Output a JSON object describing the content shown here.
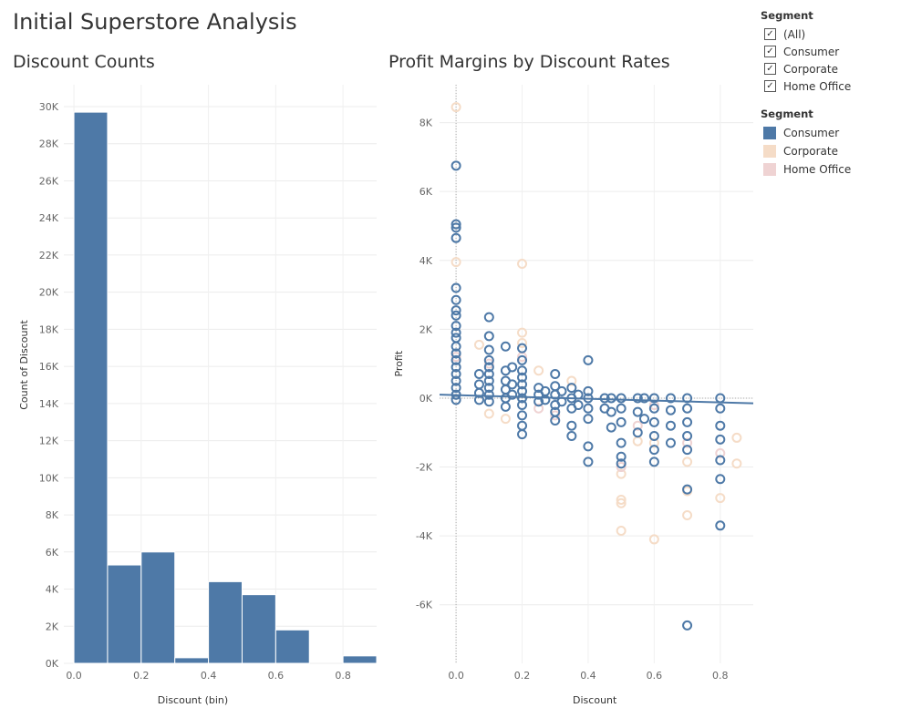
{
  "dashboard": {
    "title": "Initial Superstore Analysis"
  },
  "filter": {
    "title": "Segment",
    "items": [
      {
        "label": "(All)",
        "checked": true
      },
      {
        "label": "Consumer",
        "checked": true
      },
      {
        "label": "Corporate",
        "checked": true
      },
      {
        "label": "Home Office",
        "checked": true
      }
    ]
  },
  "color_legend": {
    "title": "Segment",
    "items": [
      {
        "label": "Consumer",
        "color": "#4e79a7"
      },
      {
        "label": "Corporate",
        "color": "#f5dcc7"
      },
      {
        "label": "Home Office",
        "color": "#efd3d3"
      }
    ]
  },
  "chart_data": [
    {
      "type": "bar",
      "title": "Discount Counts",
      "xlabel": "Discount (bin)",
      "ylabel": "Count of Discount",
      "bin_width": 0.1,
      "bins": [
        0.0,
        0.1,
        0.2,
        0.3,
        0.4,
        0.5,
        0.6,
        0.7,
        0.8
      ],
      "values": [
        29700,
        5300,
        6000,
        300,
        4400,
        3700,
        1800,
        0,
        400
      ],
      "xticks": [
        "0.0",
        "0.2",
        "0.4",
        "0.6",
        "0.8"
      ],
      "xtick_values": [
        0.0,
        0.2,
        0.4,
        0.6,
        0.8
      ],
      "yticks": [
        "0K",
        "2K",
        "4K",
        "6K",
        "8K",
        "10K",
        "12K",
        "14K",
        "16K",
        "18K",
        "20K",
        "22K",
        "24K",
        "26K",
        "28K",
        "30K"
      ],
      "ylim": [
        0,
        30000
      ],
      "color": "#4e79a7",
      "grid": true
    },
    {
      "type": "scatter",
      "title": "Profit Margins by Discount Rates",
      "xlabel": "Discount",
      "ylabel": "Profit",
      "xlim": [
        -0.05,
        0.9
      ],
      "ylim": [
        -7700,
        9100
      ],
      "xticks": [
        "0.0",
        "0.2",
        "0.4",
        "0.6",
        "0.8"
      ],
      "xtick_values": [
        0.0,
        0.2,
        0.4,
        0.6,
        0.8
      ],
      "yticks": [
        "-6K",
        "-4K",
        "-2K",
        "0K",
        "2K",
        "4K",
        "6K",
        "8K"
      ],
      "ytick_values": [
        -6000,
        -4000,
        -2000,
        0,
        2000,
        4000,
        6000,
        8000
      ],
      "trend_line": {
        "x": [
          -0.05,
          0.9
        ],
        "y": [
          100,
          -150
        ]
      },
      "grid": true,
      "series": [
        {
          "name": "Consumer",
          "color": "#4e79a7",
          "points": [
            [
              0.0,
              6750
            ],
            [
              0.0,
              5050
            ],
            [
              0.0,
              4950
            ],
            [
              0.0,
              4650
            ],
            [
              0.0,
              3200
            ],
            [
              0.0,
              2850
            ],
            [
              0.0,
              2550
            ],
            [
              0.0,
              2400
            ],
            [
              0.0,
              2100
            ],
            [
              0.0,
              1900
            ],
            [
              0.0,
              1750
            ],
            [
              0.0,
              1500
            ],
            [
              0.0,
              1300
            ],
            [
              0.0,
              1100
            ],
            [
              0.0,
              900
            ],
            [
              0.0,
              700
            ],
            [
              0.0,
              500
            ],
            [
              0.0,
              300
            ],
            [
              0.0,
              100
            ],
            [
              0.0,
              -50
            ],
            [
              0.07,
              700
            ],
            [
              0.07,
              400
            ],
            [
              0.07,
              150
            ],
            [
              0.07,
              -50
            ],
            [
              0.1,
              2350
            ],
            [
              0.1,
              1800
            ],
            [
              0.1,
              1400
            ],
            [
              0.1,
              1100
            ],
            [
              0.1,
              900
            ],
            [
              0.1,
              700
            ],
            [
              0.1,
              500
            ],
            [
              0.1,
              300
            ],
            [
              0.1,
              100
            ],
            [
              0.1,
              -100
            ],
            [
              0.15,
              1500
            ],
            [
              0.15,
              800
            ],
            [
              0.15,
              500
            ],
            [
              0.15,
              250
            ],
            [
              0.15,
              0
            ],
            [
              0.15,
              -250
            ],
            [
              0.17,
              900
            ],
            [
              0.17,
              400
            ],
            [
              0.17,
              100
            ],
            [
              0.2,
              1450
            ],
            [
              0.2,
              1100
            ],
            [
              0.2,
              800
            ],
            [
              0.2,
              600
            ],
            [
              0.2,
              400
            ],
            [
              0.2,
              200
            ],
            [
              0.2,
              0
            ],
            [
              0.2,
              -200
            ],
            [
              0.2,
              -500
            ],
            [
              0.2,
              -800
            ],
            [
              0.2,
              -1050
            ],
            [
              0.25,
              300
            ],
            [
              0.25,
              100
            ],
            [
              0.25,
              -100
            ],
            [
              0.27,
              200
            ],
            [
              0.27,
              -50
            ],
            [
              0.3,
              700
            ],
            [
              0.3,
              350
            ],
            [
              0.3,
              100
            ],
            [
              0.3,
              -200
            ],
            [
              0.3,
              -400
            ],
            [
              0.3,
              -650
            ],
            [
              0.32,
              200
            ],
            [
              0.32,
              -100
            ],
            [
              0.35,
              300
            ],
            [
              0.35,
              0
            ],
            [
              0.35,
              -300
            ],
            [
              0.35,
              -800
            ],
            [
              0.35,
              -1100
            ],
            [
              0.37,
              100
            ],
            [
              0.37,
              -200
            ],
            [
              0.4,
              1100
            ],
            [
              0.4,
              200
            ],
            [
              0.4,
              0
            ],
            [
              0.4,
              -300
            ],
            [
              0.4,
              -600
            ],
            [
              0.4,
              -1400
            ],
            [
              0.4,
              -1850
            ],
            [
              0.45,
              0
            ],
            [
              0.45,
              -300
            ],
            [
              0.47,
              0
            ],
            [
              0.47,
              -400
            ],
            [
              0.47,
              -850
            ],
            [
              0.5,
              0
            ],
            [
              0.5,
              -300
            ],
            [
              0.5,
              -700
            ],
            [
              0.5,
              -1300
            ],
            [
              0.5,
              -1700
            ],
            [
              0.5,
              -1900
            ],
            [
              0.55,
              0
            ],
            [
              0.55,
              -400
            ],
            [
              0.55,
              -1000
            ],
            [
              0.57,
              0
            ],
            [
              0.57,
              -600
            ],
            [
              0.6,
              0
            ],
            [
              0.6,
              -300
            ],
            [
              0.6,
              -700
            ],
            [
              0.6,
              -1100
            ],
            [
              0.6,
              -1500
            ],
            [
              0.6,
              -1850
            ],
            [
              0.65,
              0
            ],
            [
              0.65,
              -350
            ],
            [
              0.65,
              -800
            ],
            [
              0.65,
              -1300
            ],
            [
              0.7,
              0
            ],
            [
              0.7,
              -300
            ],
            [
              0.7,
              -700
            ],
            [
              0.7,
              -1100
            ],
            [
              0.7,
              -1500
            ],
            [
              0.7,
              -2650
            ],
            [
              0.7,
              -6600
            ],
            [
              0.8,
              0
            ],
            [
              0.8,
              -300
            ],
            [
              0.8,
              -800
            ],
            [
              0.8,
              -1200
            ],
            [
              0.8,
              -1800
            ],
            [
              0.8,
              -2350
            ],
            [
              0.8,
              -3700
            ]
          ]
        },
        {
          "name": "Corporate",
          "color": "#f5dcc7",
          "points": [
            [
              0.0,
              8450
            ],
            [
              0.0,
              3950
            ],
            [
              0.07,
              1550
            ],
            [
              0.1,
              -450
            ],
            [
              0.15,
              -600
            ],
            [
              0.2,
              3900
            ],
            [
              0.2,
              1900
            ],
            [
              0.2,
              1600
            ],
            [
              0.25,
              800
            ],
            [
              0.35,
              500
            ],
            [
              0.5,
              -2950
            ],
            [
              0.5,
              -3050
            ],
            [
              0.5,
              -3850
            ],
            [
              0.5,
              -2200
            ],
            [
              0.55,
              -1250
            ],
            [
              0.6,
              -4100
            ],
            [
              0.6,
              -1300
            ],
            [
              0.7,
              -3400
            ],
            [
              0.7,
              -2700
            ],
            [
              0.7,
              -1850
            ],
            [
              0.8,
              -2900
            ],
            [
              0.85,
              -1150
            ],
            [
              0.85,
              -1900
            ]
          ]
        },
        {
          "name": "Home Office",
          "color": "#efd3d3",
          "points": [
            [
              0.0,
              1200
            ],
            [
              0.1,
              1000
            ],
            [
              0.2,
              1200
            ],
            [
              0.25,
              -300
            ],
            [
              0.3,
              -500
            ],
            [
              0.5,
              -2000
            ],
            [
              0.55,
              -800
            ],
            [
              0.6,
              -200
            ],
            [
              0.7,
              -1300
            ],
            [
              0.8,
              -1600
            ]
          ]
        }
      ]
    }
  ]
}
